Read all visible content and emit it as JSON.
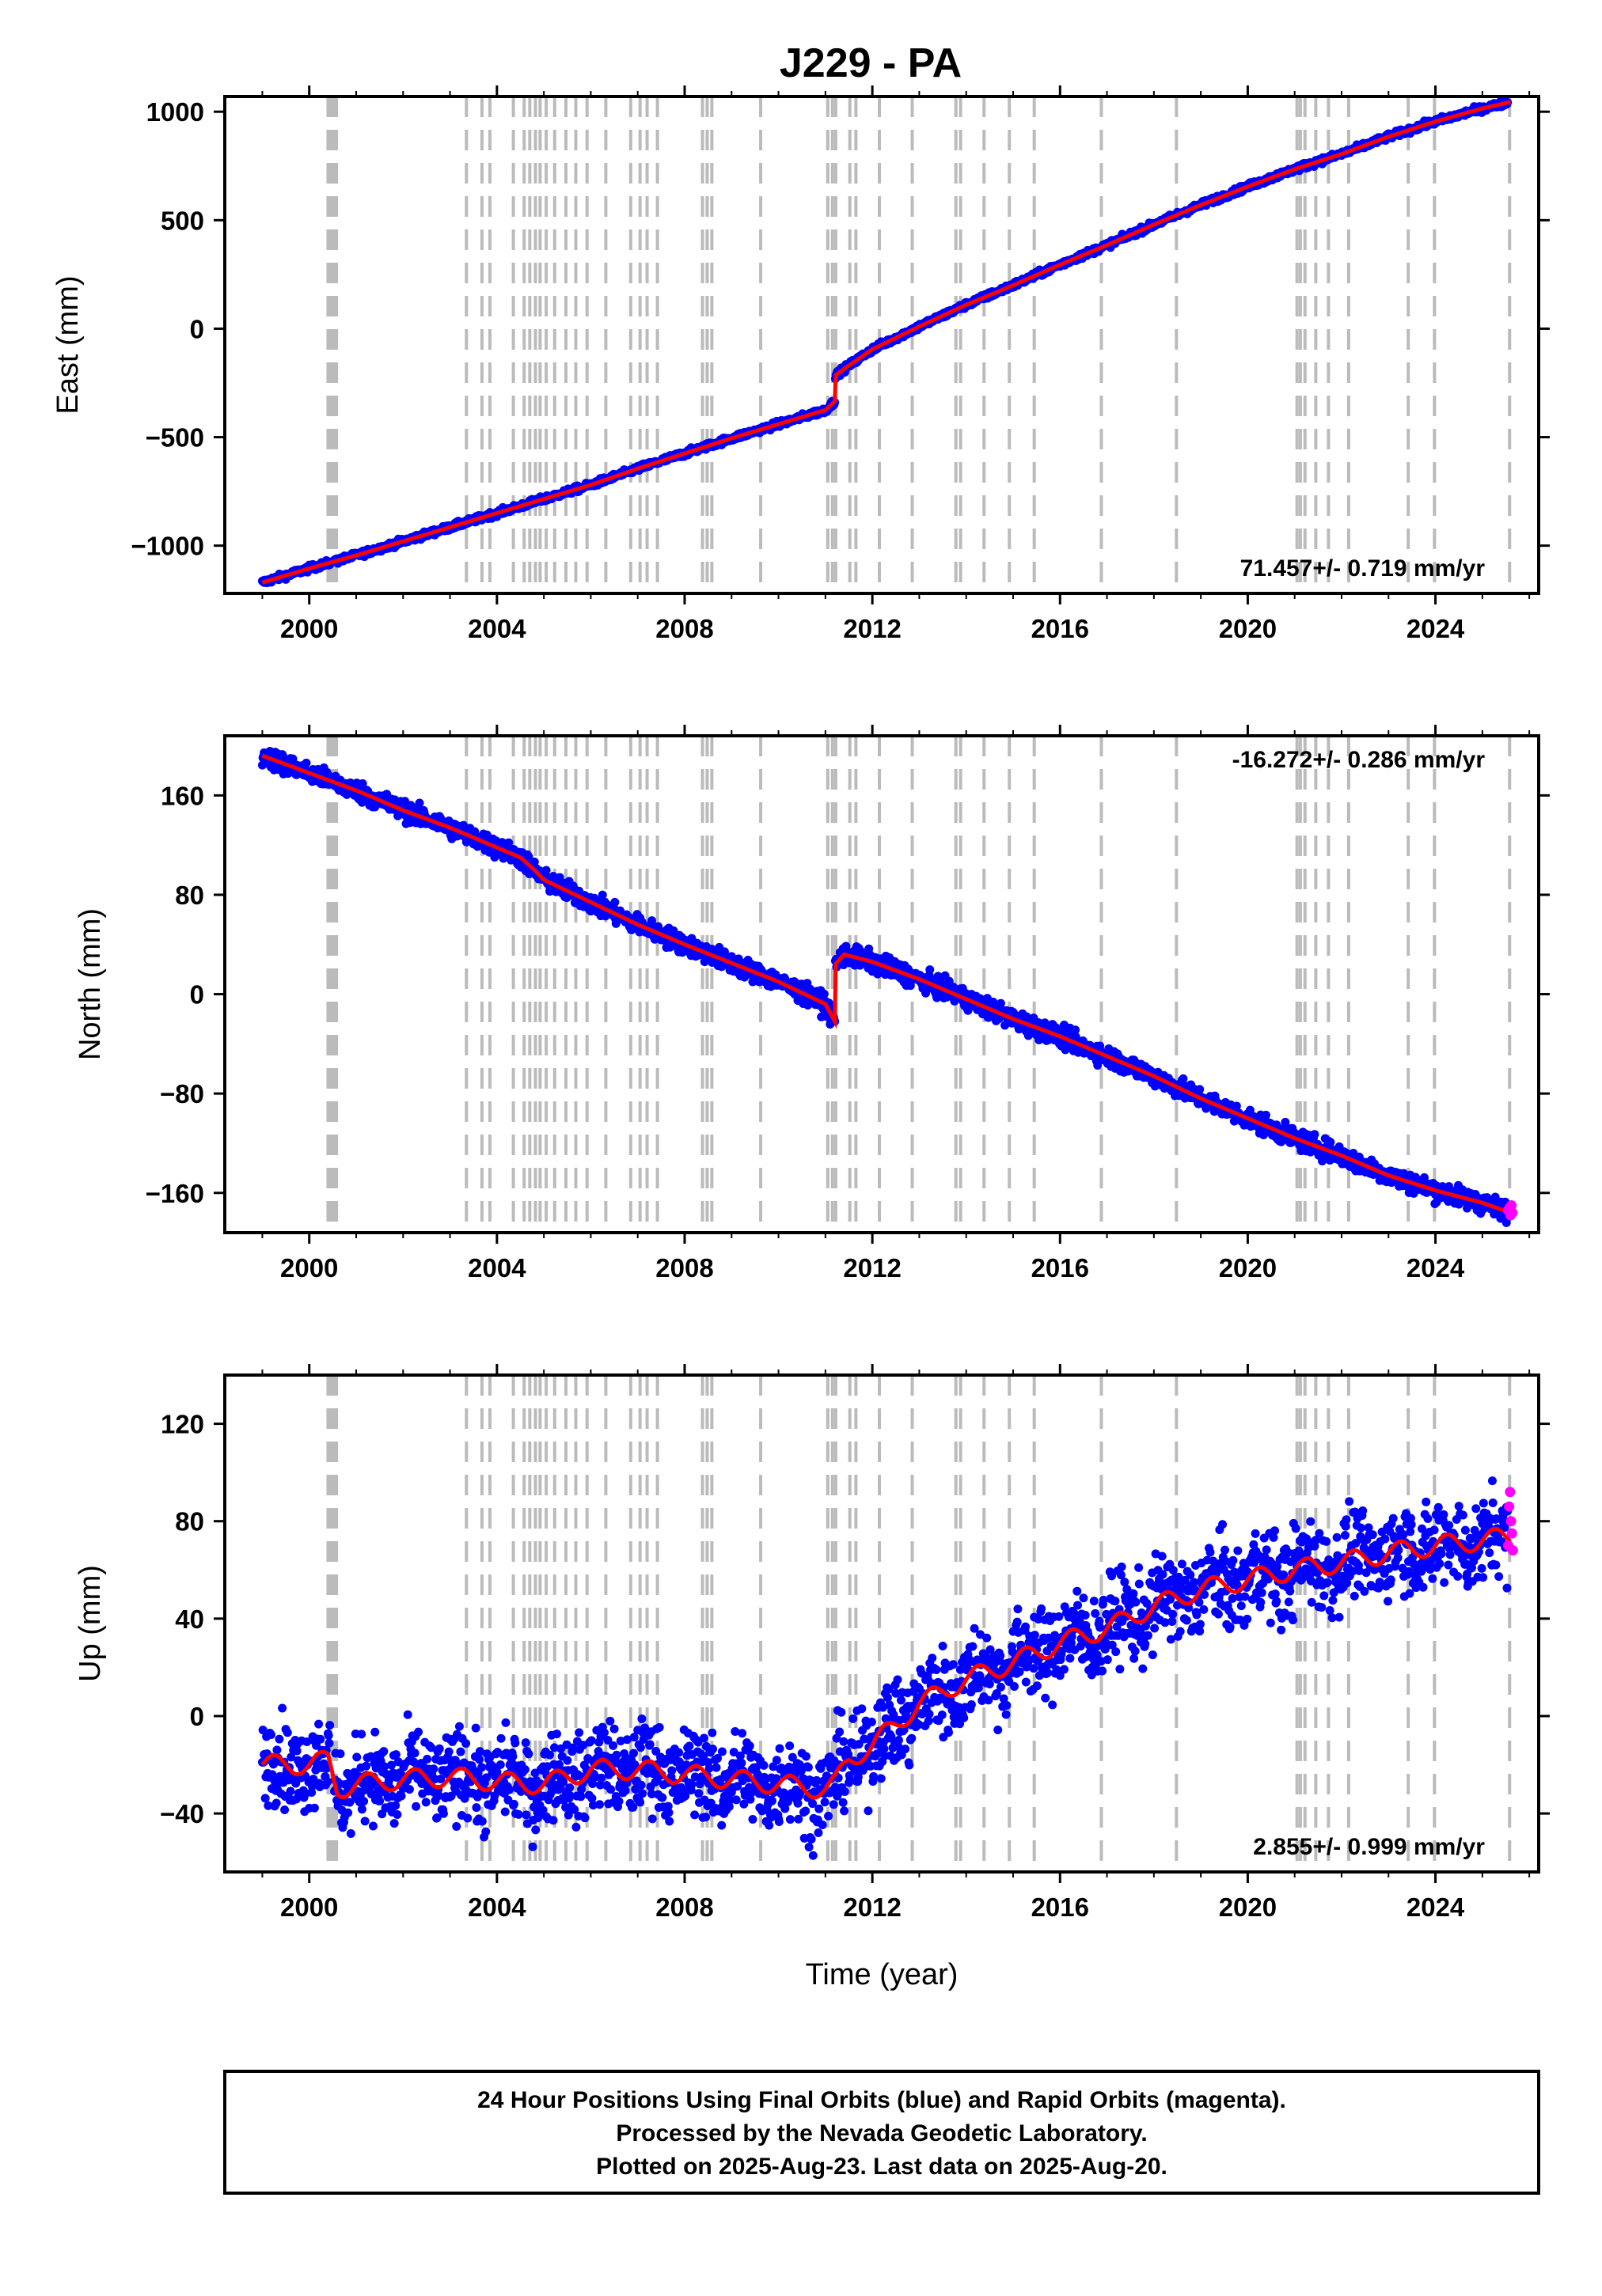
{
  "chart_data": {
    "type": "scatter",
    "title": "J229 - PA",
    "xlabel": "Time (year)",
    "xlim": [
      1998.2,
      2026.2
    ],
    "x_ticks": [
      2000,
      2004,
      2008,
      2012,
      2016,
      2020,
      2024
    ],
    "x_tick_labels": [
      "2000",
      "2004",
      "2008",
      "2012",
      "2016",
      "2020",
      "2024"
    ],
    "grid": false,
    "legend": "none",
    "colors": {
      "final_orbits": "#0000ff",
      "rapid_orbits": "#ff00ff",
      "model": "#ff0000",
      "event_lines": "#bbbbbb"
    },
    "event_lines": [
      2000.4,
      2000.46,
      2000.52,
      2000.58,
      2003.35,
      2003.68,
      2003.85,
      2004.35,
      2004.58,
      2004.7,
      2004.82,
      2004.92,
      2005.05,
      2005.23,
      2005.47,
      2005.68,
      2005.92,
      2006.32,
      2006.85,
      2007.05,
      2007.2,
      2007.42,
      2008.38,
      2008.48,
      2008.58,
      2009.62,
      2011.05,
      2011.15,
      2011.22,
      2011.52,
      2011.65,
      2012.15,
      2012.85,
      2013.78,
      2013.88,
      2014.38,
      2014.92,
      2015.45,
      2016.88,
      2018.48,
      2021.05,
      2021.12,
      2021.22,
      2021.45,
      2021.72,
      2022.15,
      2023.42,
      2023.98,
      2025.58
    ],
    "panels": [
      {
        "ylabel": "East (mm)",
        "ylim": [
          -1220,
          1070
        ],
        "y_ticks": [
          1000,
          500,
          0,
          -500,
          -1000
        ],
        "y_tick_labels": [
          "1000",
          "500",
          "0",
          "−500",
          "−1000"
        ],
        "rate_label": "71.457+/- 0.719 mm/yr",
        "rate_position": "bottom-right",
        "series": {
          "x": [
            1999.0,
            2000.0,
            2001.0,
            2002.0,
            2003.0,
            2004.0,
            2005.0,
            2006.0,
            2007.0,
            2008.0,
            2009.0,
            2010.0,
            2011.0,
            2011.2,
            2011.21,
            2011.5,
            2012.0,
            2013.0,
            2014.0,
            2015.0,
            2016.0,
            2017.0,
            2018.0,
            2019.0,
            2020.0,
            2021.0,
            2022.0,
            2023.0,
            2024.0,
            2025.0,
            2025.6
          ],
          "y": [
            -1170,
            -1105,
            -1045,
            -980,
            -915,
            -850,
            -785,
            -720,
            -645,
            -575,
            -505,
            -440,
            -375,
            -335,
            -215,
            -170,
            -95,
            10,
            110,
            200,
            295,
            385,
            480,
            570,
            655,
            735,
            805,
            885,
            955,
            1015,
            1045
          ]
        },
        "noise": 7
      },
      {
        "ylabel": "North (mm)",
        "ylim": [
          -192,
          208
        ],
        "y_ticks": [
          160,
          80,
          0,
          -80,
          -160
        ],
        "y_tick_labels": [
          "160",
          "80",
          "0",
          "−80",
          "−160"
        ],
        "rate_label": "-16.272+/- 0.286 mm/yr",
        "rate_position": "top-right",
        "series": {
          "x": [
            1999.0,
            2000.0,
            2001.0,
            2002.0,
            2003.0,
            2004.0,
            2004.5,
            2004.8,
            2005.0,
            2006.0,
            2007.0,
            2008.0,
            2009.0,
            2010.0,
            2011.0,
            2011.2,
            2011.21,
            2011.4,
            2012.0,
            2013.0,
            2014.0,
            2015.0,
            2016.0,
            2017.0,
            2018.0,
            2019.0,
            2020.0,
            2021.0,
            2022.0,
            2023.0,
            2024.0,
            2025.0,
            2025.6
          ],
          "y": [
            192,
            178,
            164,
            148,
            134,
            118,
            110,
            100,
            92,
            74,
            56,
            40,
            25,
            10,
            -8,
            -22,
            24,
            32,
            26,
            12,
            -4,
            -20,
            -34,
            -50,
            -66,
            -84,
            -100,
            -116,
            -130,
            -146,
            -158,
            -168,
            -176
          ]
        },
        "rapid_orbits": {
          "x": [
            2025.55,
            2025.58,
            2025.6,
            2025.62,
            2025.64
          ],
          "y": [
            -174,
            -172,
            -178,
            -170,
            -176
          ]
        },
        "noise": 4
      },
      {
        "ylabel": "Up (mm)",
        "ylim": [
          -64,
          140
        ],
        "y_ticks": [
          120,
          80,
          40,
          0,
          -40
        ],
        "y_tick_labels": [
          "120",
          "80",
          "40",
          "0",
          "−40"
        ],
        "rate_label": "2.855+/- 0.999 mm/yr",
        "rate_position": "bottom-right",
        "series": {
          "x": [
            1999.0,
            2000.0,
            2000.4,
            2000.6,
            2001.0,
            2002.0,
            2003.0,
            2004.0,
            2005.0,
            2006.0,
            2007.0,
            2008.0,
            2009.0,
            2010.0,
            2011.0,
            2011.2,
            2011.5,
            2012.0,
            2013.0,
            2014.0,
            2015.0,
            2016.0,
            2017.0,
            2018.0,
            2019.0,
            2020.0,
            2021.0,
            2022.0,
            2023.0,
            2024.0,
            2025.0,
            2025.6
          ],
          "y": [
            -20,
            -20,
            -18,
            -30,
            -28,
            -26,
            -25,
            -27,
            -28,
            -22,
            -22,
            -24,
            -26,
            -28,
            -30,
            -28,
            -18,
            -12,
            5,
            15,
            22,
            30,
            36,
            45,
            52,
            56,
            60,
            63,
            67,
            70,
            72,
            74
          ]
        },
        "rapid_orbits": {
          "x": [
            2025.55,
            2025.57,
            2025.59,
            2025.61,
            2025.63,
            2025.65
          ],
          "y": [
            70,
            86,
            92,
            80,
            75,
            68
          ]
        },
        "noise": 9
      }
    ],
    "footer_lines": [
      "24 Hour Positions Using Final Orbits (blue) and Rapid Orbits (magenta).",
      "Processed by the Nevada Geodetic Laboratory.",
      "Plotted on 2025-Aug-23. Last data on 2025-Aug-20."
    ]
  }
}
